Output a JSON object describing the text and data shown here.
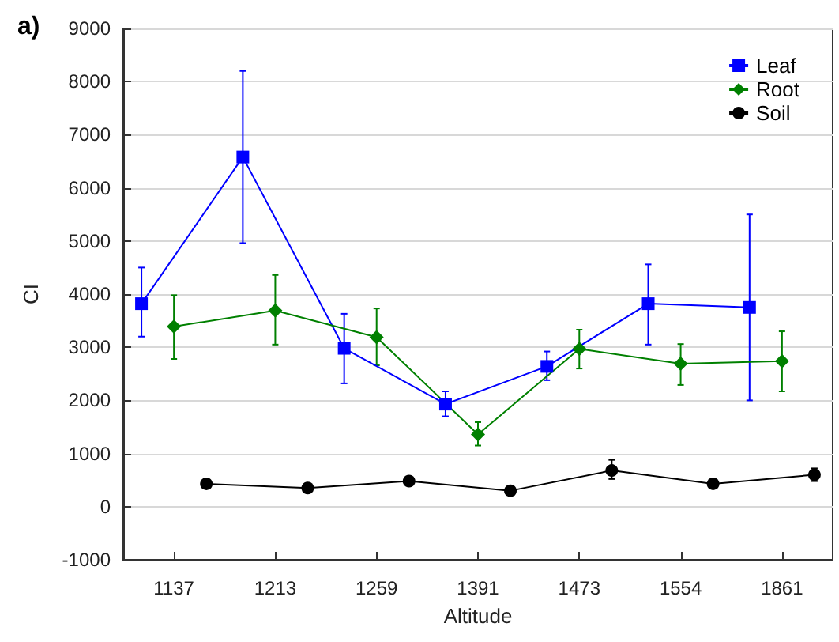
{
  "chart_data": {
    "type": "line",
    "title": "a)",
    "xlabel": "Altitude",
    "ylabel": "CI",
    "categories": [
      "1137",
      "1213",
      "1259",
      "1391",
      "1473",
      "1554",
      "1861"
    ],
    "series": [
      {
        "name": "Leaf",
        "color": "#0000ff",
        "marker": "square",
        "values": [
          3820,
          6580,
          2980,
          1930,
          2640,
          3820,
          3750
        ],
        "errors": [
          [
            3200,
            4500
          ],
          [
            4960,
            8200
          ],
          [
            2320,
            3630
          ],
          [
            1700,
            2170
          ],
          [
            2380,
            2920
          ],
          [
            3050,
            4560
          ],
          [
            2000,
            5500
          ]
        ]
      },
      {
        "name": "Root",
        "color": "#008000",
        "marker": "diamond",
        "values": [
          3390,
          3690,
          3190,
          1360,
          2970,
          2690,
          2740
        ],
        "errors": [
          [
            2780,
            3980
          ],
          [
            3050,
            4360
          ],
          [
            2660,
            3730
          ],
          [
            1150,
            1590
          ],
          [
            2600,
            3330
          ],
          [
            2290,
            3060
          ],
          [
            2170,
            3300
          ]
        ]
      },
      {
        "name": "Soil",
        "color": "#000000",
        "marker": "circle",
        "values": [
          430,
          350,
          480,
          300,
          680,
          430,
          600
        ],
        "errors": [
          null,
          null,
          null,
          null,
          [
            520,
            880
          ],
          null,
          [
            480,
            720
          ]
        ]
      }
    ],
    "ylim": [
      -1000,
      9000
    ],
    "yticks": [
      -1000,
      0,
      1000,
      2000,
      3000,
      4000,
      5000,
      6000,
      7000,
      8000,
      9000
    ],
    "grid": "y",
    "legend": "top right"
  }
}
